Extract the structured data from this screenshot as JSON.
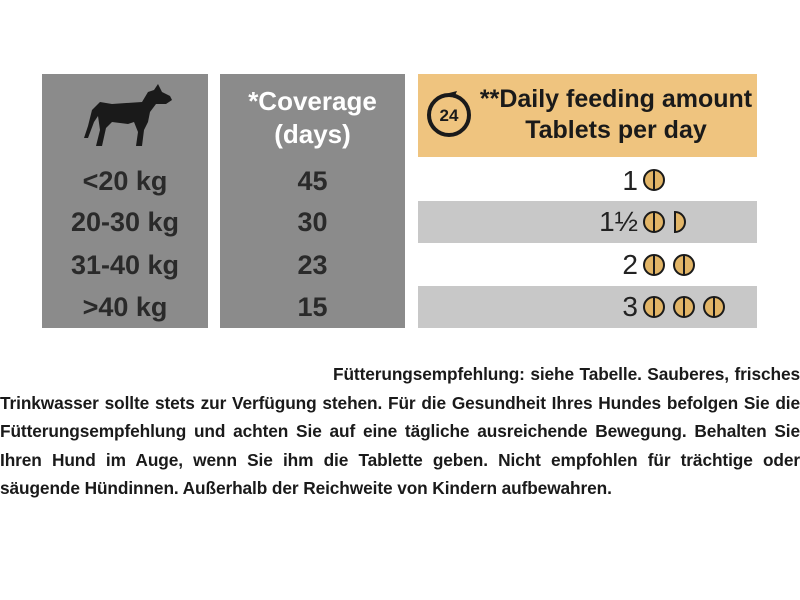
{
  "table": {
    "coverage_header": [
      "*Coverage",
      "(days)"
    ],
    "clock_badge": "24",
    "daily_header": [
      "**Daily feeding amount",
      "Tablets per day"
    ],
    "rows": [
      {
        "weight": "<20 kg",
        "days": "45",
        "tablets": "1"
      },
      {
        "weight": "20-30 kg",
        "days": "30",
        "tablets": "1½"
      },
      {
        "weight": "31-40 kg",
        "days": "23",
        "tablets": "2"
      },
      {
        "weight": ">40 kg",
        "days": "15",
        "tablets": "3"
      }
    ]
  },
  "paragraph": "Fütterungsempfehlung: siehe Tabelle. Sauberes, frisches Trinkwasser sollte stets zur Verfügung stehen. Für die Gesundheit Ihres Hundes befolgen Sie die Fütterungsempfehlung und achten Sie auf eine tägliche ausreichende Bewegung. Behalten Sie Ihren Hund im Auge, wenn Sie ihm die Tablette geben. Nicht empfohlen für trächtige oder säugende Hündinnen. Außerhalb der Reichweite von Kindern aufbewahren."
}
